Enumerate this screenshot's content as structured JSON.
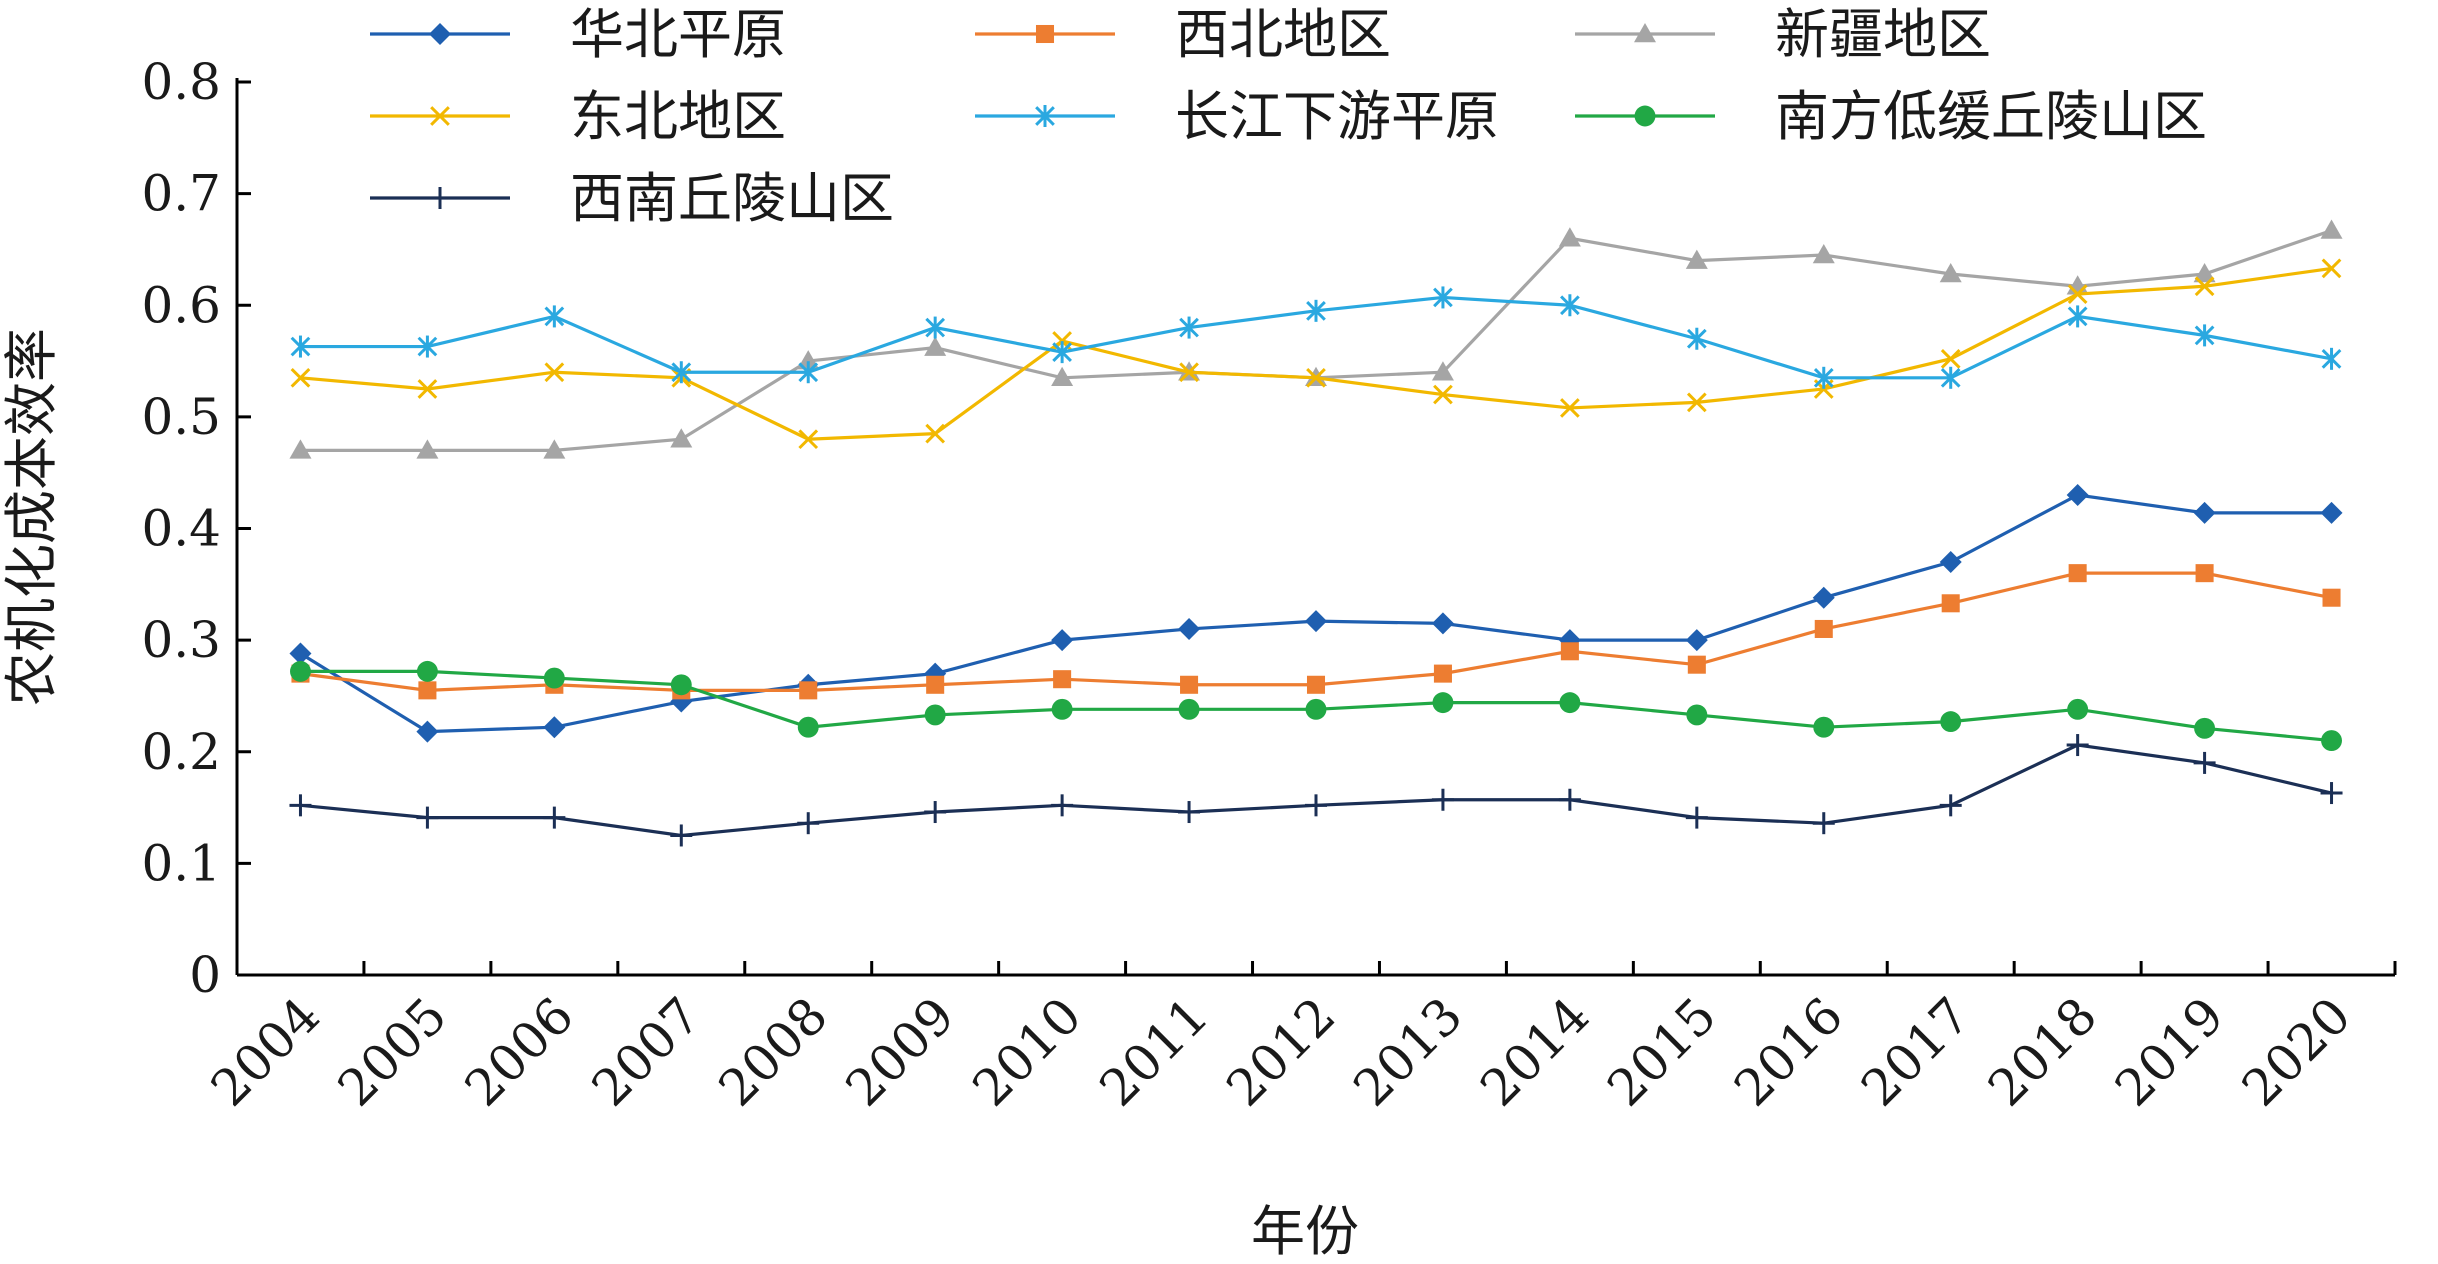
{
  "chart_data": {
    "type": "line",
    "title": "",
    "xlabel": "年份",
    "ylabel": "农机化成本效率",
    "ylim": [
      0,
      0.8
    ],
    "yticks": [
      "0",
      "0.1",
      "0.2",
      "0.3",
      "0.4",
      "0.5",
      "0.6",
      "0.7",
      "0.8"
    ],
    "categories": [
      "2004",
      "2005",
      "2006",
      "2007",
      "2008",
      "2009",
      "2010",
      "2011",
      "2012",
      "2013",
      "2014",
      "2015",
      "2016",
      "2017",
      "2018",
      "2019",
      "2020"
    ],
    "grid": false,
    "legend_position": "top",
    "series": [
      {
        "name": "华北平原",
        "color": "#1f5fb0",
        "marker": "diamond",
        "values": [
          0.288,
          0.218,
          0.222,
          0.245,
          0.26,
          0.27,
          0.3,
          0.31,
          0.317,
          0.315,
          0.3,
          0.3,
          0.338,
          0.37,
          0.43,
          0.414,
          0.414
        ]
      },
      {
        "name": "西北地区",
        "color": "#ed7d31",
        "marker": "square",
        "values": [
          0.27,
          0.255,
          0.26,
          0.255,
          0.255,
          0.26,
          0.265,
          0.26,
          0.26,
          0.27,
          0.29,
          0.278,
          0.31,
          0.333,
          0.36,
          0.36,
          0.338
        ]
      },
      {
        "name": "新疆地区",
        "color": "#a5a5a5",
        "marker": "triangle",
        "values": [
          0.47,
          0.47,
          0.47,
          0.48,
          0.55,
          0.562,
          0.535,
          0.54,
          0.535,
          0.54,
          0.66,
          0.64,
          0.645,
          0.628,
          0.617,
          0.628,
          0.667
        ]
      },
      {
        "name": "东北地区",
        "color": "#f2b800",
        "marker": "x",
        "values": [
          0.535,
          0.525,
          0.54,
          0.535,
          0.48,
          0.485,
          0.568,
          0.54,
          0.535,
          0.52,
          0.508,
          0.513,
          0.525,
          0.552,
          0.61,
          0.617,
          0.633
        ]
      },
      {
        "name": "长江下游平原",
        "color": "#2aa8e0",
        "marker": "asterisk",
        "values": [
          0.563,
          0.563,
          0.59,
          0.54,
          0.54,
          0.58,
          0.558,
          0.58,
          0.595,
          0.607,
          0.6,
          0.57,
          0.535,
          0.535,
          0.59,
          0.573,
          0.552
        ]
      },
      {
        "name": "南方低缓丘陵山区",
        "color": "#21a845",
        "marker": "circle",
        "values": [
          0.272,
          0.272,
          0.266,
          0.26,
          0.222,
          0.233,
          0.238,
          0.238,
          0.238,
          0.244,
          0.244,
          0.233,
          0.222,
          0.227,
          0.238,
          0.221,
          0.21
        ]
      },
      {
        "name": "西南丘陵山区",
        "color": "#1b2f55",
        "marker": "plus",
        "values": [
          0.152,
          0.141,
          0.141,
          0.125,
          0.136,
          0.146,
          0.152,
          0.146,
          0.152,
          0.157,
          0.157,
          0.141,
          0.136,
          0.152,
          0.206,
          0.19,
          0.163
        ]
      }
    ]
  }
}
